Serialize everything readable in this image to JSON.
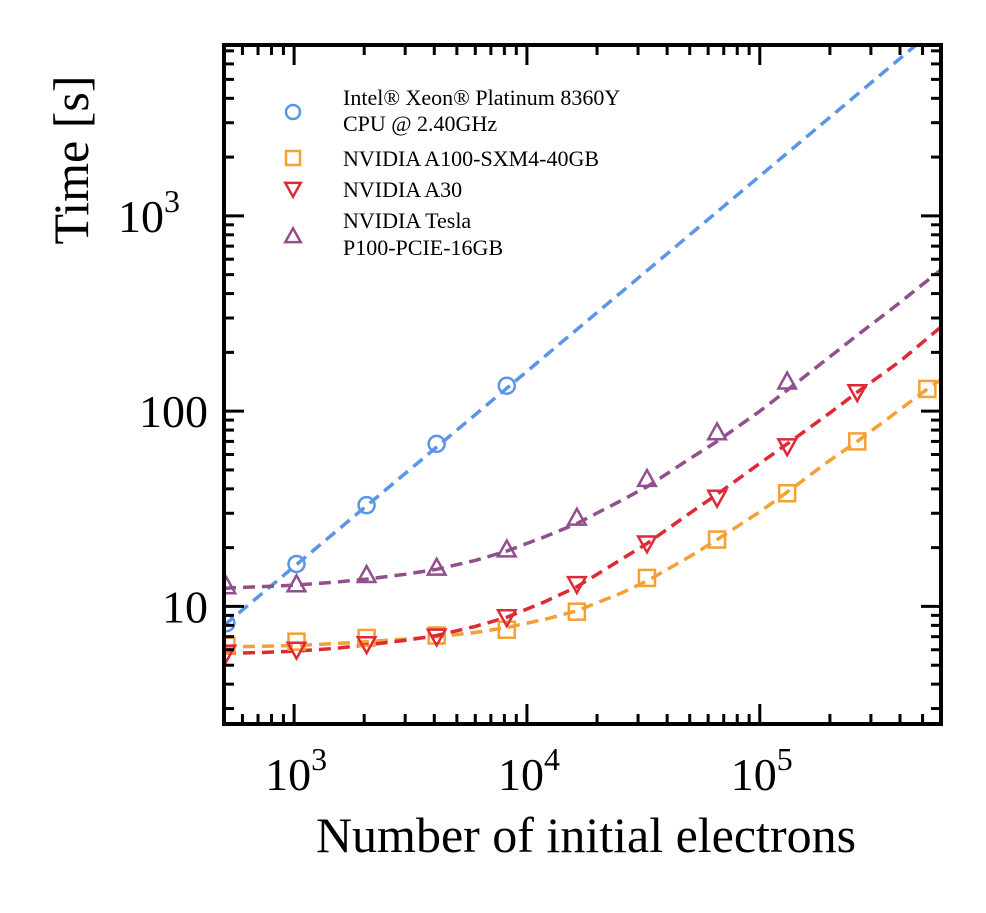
{
  "chart_data": {
    "type": "scatter",
    "xlabel": "Number of initial electrons",
    "ylabel": "Time [s]",
    "xscale": "log",
    "yscale": "log",
    "xlim": [
      500,
      600000
    ],
    "ylim": [
      2.5,
      7500
    ],
    "xticks": [
      {
        "value": 1000,
        "base": "10",
        "exp": "3"
      },
      {
        "value": 10000,
        "base": "10",
        "exp": "4"
      },
      {
        "value": 100000,
        "base": "10",
        "exp": "5"
      }
    ],
    "yticks": [
      {
        "value": 10,
        "base": "10",
        "exp": ""
      },
      {
        "value": 100,
        "base": "100",
        "exp": ""
      },
      {
        "value": 1000,
        "base": "10",
        "exp": "3"
      }
    ],
    "grid": false,
    "legend_position": "top-left",
    "series": [
      {
        "name_lines": [
          "Intel® Xeon® Platinum 8360Y",
          "CPU @ 2.40GHz"
        ],
        "marker": "circle",
        "color": "#5b95e8",
        "x": [
          512,
          1024,
          2048,
          4096,
          8192
        ],
        "y": [
          8.2,
          16.5,
          33,
          68,
          135
        ],
        "fit_x": [
          500,
          600000
        ],
        "fit_y": [
          8.0,
          9600
        ]
      },
      {
        "name_lines": [
          "NVIDIA A100-SXM4-40GB"
        ],
        "marker": "square",
        "color": "#f5a033",
        "x": [
          512,
          1024,
          2048,
          4096,
          8192,
          16384,
          32768,
          65536,
          131072,
          262144,
          524288
        ],
        "y": [
          6.3,
          6.6,
          6.9,
          7.1,
          7.6,
          9.4,
          14,
          22,
          38,
          70,
          130
        ],
        "fit_x": [
          500,
          700,
          1000,
          1500,
          2048,
          3000,
          4096,
          6000,
          8192,
          12000,
          16384,
          25000,
          32768,
          50000,
          65536,
          100000,
          131072,
          200000,
          262144,
          400000,
          524288,
          600000
        ],
        "fit_y": [
          6.2,
          6.25,
          6.3,
          6.45,
          6.6,
          6.8,
          7.0,
          7.35,
          7.8,
          8.6,
          9.5,
          11.6,
          13.5,
          18.0,
          22.0,
          30.5,
          38.5,
          56.0,
          70.0,
          102,
          130,
          145
        ]
      },
      {
        "name_lines": [
          "NVIDIA A30"
        ],
        "marker": "triangle-down",
        "color": "#dd2a36",
        "x": [
          512,
          1024,
          2048,
          4096,
          8192,
          16384,
          32768,
          65536,
          131072,
          262144
        ],
        "y": [
          5.8,
          6.0,
          6.4,
          7.0,
          8.8,
          13,
          21,
          36,
          66,
          125
        ],
        "fit_x": [
          500,
          700,
          1000,
          1500,
          2048,
          3000,
          4096,
          6000,
          8192,
          12000,
          16384,
          25000,
          32768,
          50000,
          65536,
          100000,
          131072,
          200000,
          262144,
          400000,
          600000
        ],
        "fit_y": [
          5.75,
          5.8,
          5.9,
          6.1,
          6.35,
          6.7,
          7.1,
          7.9,
          8.8,
          10.6,
          12.6,
          17.2,
          21.0,
          30.0,
          37.5,
          54.0,
          68.0,
          98.0,
          125,
          180,
          270
        ]
      },
      {
        "name_lines": [
          "NVIDIA Tesla",
          "P100-PCIE-16GB"
        ],
        "marker": "triangle-up",
        "color": "#924f8d",
        "x": [
          512,
          1024,
          2048,
          4096,
          8192,
          16384,
          32768,
          65536,
          131072
        ],
        "y": [
          12.7,
          13,
          14.5,
          15.8,
          19.6,
          28.5,
          45,
          78,
          142
        ],
        "fit_x": [
          500,
          700,
          1000,
          1500,
          2048,
          3000,
          4096,
          6000,
          8192,
          12000,
          16384,
          25000,
          32768,
          50000,
          65536,
          100000,
          131072,
          200000,
          262144,
          400000,
          600000
        ],
        "fit_y": [
          12.4,
          12.6,
          12.85,
          13.3,
          13.8,
          14.6,
          15.5,
          17.2,
          19.2,
          22.8,
          26.6,
          34.5,
          41.0,
          57.0,
          70.0,
          100,
          128,
          190,
          245,
          360,
          530
        ]
      }
    ]
  }
}
